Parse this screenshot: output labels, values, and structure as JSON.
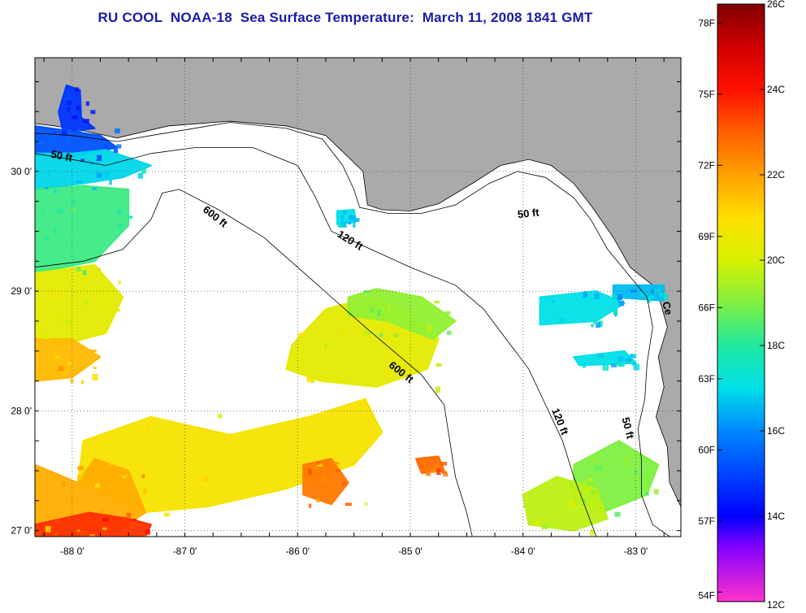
{
  "title": "RU COOL  NOAA-18  Sea Surface Temperature:  March 11, 2008 1841 GMT",
  "map": {
    "lon_range": [
      -88.33,
      -82.6
    ],
    "lat_range": [
      26.95,
      30.95
    ],
    "x_ticks": [
      {
        "value": -88,
        "label": "-88 0'"
      },
      {
        "value": -87,
        "label": "-87 0'"
      },
      {
        "value": -86,
        "label": "-86 0'"
      },
      {
        "value": -85,
        "label": "-85 0'"
      },
      {
        "value": -84,
        "label": "-84 0'"
      },
      {
        "value": -83,
        "label": "-83 0'"
      }
    ],
    "y_ticks": [
      {
        "value": 30,
        "label": "30 0'"
      },
      {
        "value": 29,
        "label": "29 0'"
      },
      {
        "value": 28,
        "label": "28 0'"
      },
      {
        "value": 27,
        "label": "27 0'"
      }
    ],
    "grid": true,
    "land_color": "#aaaaaa",
    "ocean_color": "#ffffff",
    "contour_labels": [
      {
        "text": "50 ft",
        "lon": -88.1,
        "lat": 30.1,
        "rotate": 12
      },
      {
        "text": "600 ft",
        "lon": -86.75,
        "lat": 29.6,
        "rotate": 38
      },
      {
        "text": "120 ft",
        "lon": -85.55,
        "lat": 29.4,
        "rotate": 32
      },
      {
        "text": "50 ft",
        "lon": -83.95,
        "lat": 29.62,
        "rotate": -6
      },
      {
        "text": "600 ft",
        "lon": -85.1,
        "lat": 28.3,
        "rotate": 38
      },
      {
        "text": "120 ft",
        "lon": -83.7,
        "lat": 27.9,
        "rotate": 68
      },
      {
        "text": "50 ft",
        "lon": -83.1,
        "lat": 27.85,
        "rotate": 76
      },
      {
        "text": "Ce",
        "lon": -82.75,
        "lat": 28.85,
        "rotate": 75
      }
    ]
  },
  "colorbar": {
    "celsius_range": [
      12,
      26
    ],
    "stops": [
      {
        "c": 12,
        "color": "#ff33cc"
      },
      {
        "c": 13.3,
        "color": "#8000ff"
      },
      {
        "c": 14,
        "color": "#0000ff"
      },
      {
        "c": 16,
        "color": "#0088ff"
      },
      {
        "c": 17,
        "color": "#00e0e8"
      },
      {
        "c": 18,
        "color": "#20e8a0"
      },
      {
        "c": 19,
        "color": "#80f040"
      },
      {
        "c": 20,
        "color": "#d8f000"
      },
      {
        "c": 21,
        "color": "#ffe000"
      },
      {
        "c": 22,
        "color": "#ffa000"
      },
      {
        "c": 23,
        "color": "#ff6000"
      },
      {
        "c": 24,
        "color": "#ff1000"
      },
      {
        "c": 25,
        "color": "#d00000"
      },
      {
        "c": 26,
        "color": "#800000"
      }
    ],
    "celsius_labels": [
      "12C",
      "14C",
      "16C",
      "18C",
      "20C",
      "22C",
      "24C",
      "26C"
    ],
    "fahrenheit_labels": [
      {
        "f": 54,
        "label": "54F"
      },
      {
        "f": 57,
        "label": "57F"
      },
      {
        "f": 60,
        "label": "60F"
      },
      {
        "f": 63,
        "label": "63F"
      },
      {
        "f": 66,
        "label": "66F"
      },
      {
        "f": 69,
        "label": "69F"
      },
      {
        "f": 72,
        "label": "72F"
      },
      {
        "f": 75,
        "label": "75F"
      },
      {
        "f": 78,
        "label": "78F"
      }
    ]
  },
  "sst_patches": [
    {
      "name": "sst-patch-pensacola-bay",
      "temp": 14.8,
      "points": [
        [
          -88.05,
          30.72
        ],
        [
          -87.93,
          30.68
        ],
        [
          -87.92,
          30.45
        ],
        [
          -87.8,
          30.36
        ],
        [
          -88.08,
          30.33
        ],
        [
          -88.12,
          30.5
        ]
      ]
    },
    {
      "name": "sst-patch-coastal-cold-west",
      "temp": 15.2,
      "points": [
        [
          -88.33,
          30.38
        ],
        [
          -87.75,
          30.3
        ],
        [
          -87.6,
          30.2
        ],
        [
          -88.1,
          30.1
        ],
        [
          -88.33,
          30.15
        ]
      ]
    },
    {
      "name": "sst-patch-western-cyan",
      "temp": 16.9,
      "points": [
        [
          -88.33,
          30.15
        ],
        [
          -88.0,
          30.15
        ],
        [
          -87.7,
          30.18
        ],
        [
          -87.3,
          30.05
        ],
        [
          -87.55,
          29.95
        ],
        [
          -87.9,
          29.9
        ],
        [
          -88.33,
          29.85
        ]
      ]
    },
    {
      "name": "sst-patch-western-green",
      "temp": 18.3,
      "points": [
        [
          -88.33,
          29.85
        ],
        [
          -87.9,
          29.88
        ],
        [
          -87.5,
          29.85
        ],
        [
          -87.5,
          29.55
        ],
        [
          -87.8,
          29.25
        ],
        [
          -88.33,
          29.15
        ]
      ]
    },
    {
      "name": "sst-patch-western-yellow",
      "temp": 20.3,
      "points": [
        [
          -88.33,
          29.15
        ],
        [
          -87.8,
          29.22
        ],
        [
          -87.55,
          28.95
        ],
        [
          -87.7,
          28.65
        ],
        [
          -88.1,
          28.55
        ],
        [
          -88.33,
          28.6
        ]
      ]
    },
    {
      "name": "sst-patch-western-orange",
      "temp": 21.6,
      "points": [
        [
          -88.33,
          28.6
        ],
        [
          -88.0,
          28.6
        ],
        [
          -87.75,
          28.45
        ],
        [
          -88.0,
          28.28
        ],
        [
          -88.33,
          28.25
        ]
      ]
    },
    {
      "name": "sst-patch-southwest-yellow",
      "temp": 20.8,
      "points": [
        [
          -87.9,
          27.75
        ],
        [
          -87.3,
          27.95
        ],
        [
          -86.6,
          27.8
        ],
        [
          -85.9,
          27.95
        ],
        [
          -85.4,
          28.1
        ],
        [
          -85.25,
          27.82
        ],
        [
          -85.5,
          27.55
        ],
        [
          -86.1,
          27.35
        ],
        [
          -86.8,
          27.2
        ],
        [
          -87.4,
          27.15
        ],
        [
          -87.95,
          27.4
        ]
      ]
    },
    {
      "name": "sst-patch-southwest-orange",
      "temp": 21.8,
      "points": [
        [
          -88.33,
          27.55
        ],
        [
          -87.95,
          27.4
        ],
        [
          -87.8,
          27.6
        ],
        [
          -87.5,
          27.5
        ],
        [
          -87.35,
          27.15
        ],
        [
          -87.6,
          27.0
        ],
        [
          -88.33,
          26.95
        ]
      ]
    },
    {
      "name": "sst-patch-southwest-red",
      "temp": 23.6,
      "points": [
        [
          -88.33,
          27.05
        ],
        [
          -87.85,
          27.15
        ],
        [
          -87.5,
          27.1
        ],
        [
          -87.3,
          27.05
        ],
        [
          -87.35,
          26.95
        ],
        [
          -88.33,
          26.95
        ]
      ]
    },
    {
      "name": "sst-patch-central-yellow",
      "temp": 20.3,
      "points": [
        [
          -86.05,
          28.55
        ],
        [
          -85.75,
          28.85
        ],
        [
          -85.35,
          28.95
        ],
        [
          -85.0,
          28.85
        ],
        [
          -84.75,
          28.6
        ],
        [
          -84.85,
          28.35
        ],
        [
          -85.3,
          28.2
        ],
        [
          -85.8,
          28.25
        ],
        [
          -86.1,
          28.35
        ]
      ]
    },
    {
      "name": "sst-patch-central-green",
      "temp": 19.2,
      "points": [
        [
          -85.55,
          28.95
        ],
        [
          -85.3,
          29.02
        ],
        [
          -84.9,
          28.95
        ],
        [
          -84.6,
          28.75
        ],
        [
          -84.8,
          28.6
        ],
        [
          -85.2,
          28.75
        ],
        [
          -85.55,
          28.8
        ]
      ]
    },
    {
      "name": "sst-patch-southcentral-orange",
      "temp": 22.6,
      "points": [
        [
          -85.95,
          27.55
        ],
        [
          -85.7,
          27.6
        ],
        [
          -85.55,
          27.4
        ],
        [
          -85.7,
          27.22
        ],
        [
          -85.95,
          27.3
        ]
      ]
    },
    {
      "name": "sst-patch-southcentral-orange-2",
      "temp": 22.8,
      "points": [
        [
          -84.95,
          27.6
        ],
        [
          -84.75,
          27.62
        ],
        [
          -84.7,
          27.5
        ],
        [
          -84.9,
          27.48
        ]
      ]
    },
    {
      "name": "sst-patch-bigbend-cyan",
      "temp": 17.0,
      "points": [
        [
          -83.85,
          28.95
        ],
        [
          -83.35,
          29.0
        ],
        [
          -83.1,
          28.9
        ],
        [
          -83.35,
          28.75
        ],
        [
          -83.85,
          28.72
        ]
      ]
    },
    {
      "name": "sst-patch-coastal-cyan-east",
      "temp": 16.6,
      "points": [
        [
          -83.2,
          29.05
        ],
        [
          -82.75,
          29.05
        ],
        [
          -82.75,
          28.92
        ],
        [
          -83.2,
          28.95
        ]
      ]
    },
    {
      "name": "sst-patch-bigbend-cyan-2",
      "temp": 17.0,
      "points": [
        [
          -83.55,
          28.45
        ],
        [
          -83.1,
          28.5
        ],
        [
          -83.0,
          28.4
        ],
        [
          -83.5,
          28.38
        ]
      ]
    },
    {
      "name": "sst-patch-tampa-green",
      "temp": 19.0,
      "points": [
        [
          -83.55,
          27.55
        ],
        [
          -83.15,
          27.75
        ],
        [
          -82.8,
          27.55
        ],
        [
          -82.9,
          27.3
        ],
        [
          -83.3,
          27.15
        ],
        [
          -83.55,
          27.25
        ]
      ]
    },
    {
      "name": "sst-patch-southeast-green",
      "temp": 19.7,
      "points": [
        [
          -84.0,
          27.3
        ],
        [
          -83.7,
          27.45
        ],
        [
          -83.35,
          27.35
        ],
        [
          -83.25,
          27.1
        ],
        [
          -83.55,
          27.0
        ],
        [
          -83.95,
          27.05
        ]
      ]
    },
    {
      "name": "sst-patch-apalachee-cyan",
      "temp": 17.0,
      "points": [
        [
          -85.65,
          29.67
        ],
        [
          -85.5,
          29.68
        ],
        [
          -85.48,
          29.58
        ],
        [
          -85.65,
          29.56
        ]
      ]
    }
  ],
  "land": {
    "coastline": [
      [
        -88.33,
        30.4
      ],
      [
        -88.15,
        30.38
      ],
      [
        -87.95,
        30.35
      ],
      [
        -87.6,
        30.28
      ],
      [
        -87.15,
        30.38
      ],
      [
        -86.6,
        30.42
      ],
      [
        -86.1,
        30.38
      ],
      [
        -85.75,
        30.3
      ],
      [
        -85.55,
        30.12
      ],
      [
        -85.42,
        30.0
      ],
      [
        -85.38,
        29.72
      ],
      [
        -85.25,
        29.68
      ],
      [
        -85.0,
        29.67
      ],
      [
        -84.75,
        29.73
      ],
      [
        -84.45,
        29.9
      ],
      [
        -84.2,
        30.05
      ],
      [
        -83.95,
        30.1
      ],
      [
        -83.75,
        30.05
      ],
      [
        -83.55,
        29.9
      ],
      [
        -83.4,
        29.72
      ],
      [
        -83.2,
        29.45
      ],
      [
        -83.05,
        29.2
      ],
      [
        -82.85,
        29.05
      ],
      [
        -82.78,
        28.9
      ],
      [
        -82.72,
        28.7
      ],
      [
        -82.8,
        28.45
      ],
      [
        -82.75,
        28.2
      ],
      [
        -82.82,
        27.95
      ],
      [
        -82.72,
        27.7
      ],
      [
        -82.7,
        27.4
      ],
      [
        -82.6,
        27.2
      ]
    ]
  }
}
